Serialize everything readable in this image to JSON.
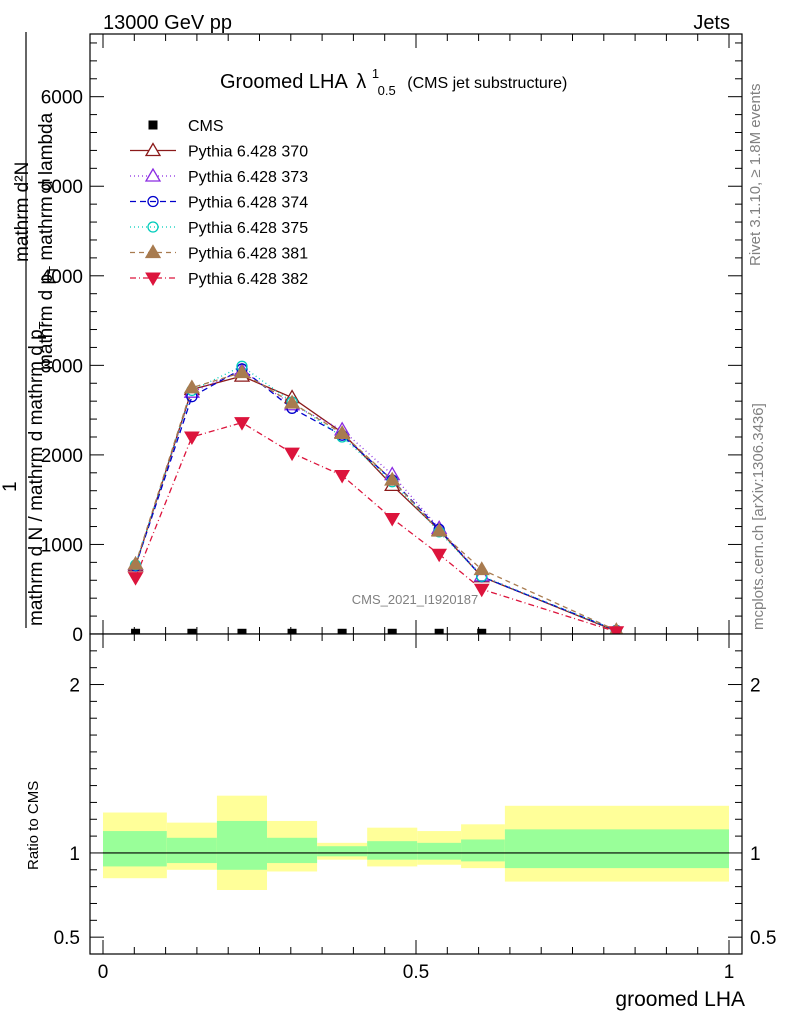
{
  "header": {
    "left": "13000 GeV pp",
    "right": "Jets",
    "side_top": "Rivet 3.1.10, ≥ 1.8M events",
    "side_bottom": "mcplots.cern.ch [arXiv:1306.3436]",
    "watermark": "CMS_2021_I1920187"
  },
  "chart_data": [
    {
      "type": "line",
      "title_main": "Groomed LHA",
      "title_symbol": "λ",
      "title_sup": "1",
      "title_sub": "0.5",
      "title_paren": "(CMS jet substructure)",
      "ylabel_num": "mathrm d²N",
      "ylabel_num_l2": "mathrm d p",
      "ylabel_num_l2_sub": "T",
      "ylabel_num_l2_tail": " mathrm d lambda",
      "ylabel_prefix": "1",
      "ylabel_den": "mathrm d N / mathrm d mathrm d p",
      "ylabel_den_sub": "T",
      "xlim": [
        0,
        1
      ],
      "ylim": [
        0,
        6700
      ],
      "yticks": [
        {
          "v": 0,
          "label": "0"
        },
        {
          "v": 1000,
          "label": "1000"
        },
        {
          "v": 2000,
          "label": "2000"
        },
        {
          "v": 3000,
          "label": "3000"
        },
        {
          "v": 4000,
          "label": "4000"
        },
        {
          "v": 5000,
          "label": "5000"
        },
        {
          "v": 6000,
          "label": "6000"
        }
      ],
      "x": [
        0.052,
        0.142,
        0.222,
        0.302,
        0.382,
        0.462,
        0.537,
        0.605,
        0.82
      ],
      "series": [
        {
          "name": "CMS",
          "marker": "square",
          "color": "#000000",
          "dash": "none",
          "values": [
            8,
            8,
            8,
            8,
            8,
            8,
            8,
            8,
            null
          ]
        },
        {
          "name": "Pythia 6.428 370",
          "marker": "triangle-open",
          "color": "#8b1a1a",
          "dash": "none",
          "values": [
            760,
            2730,
            2880,
            2640,
            2250,
            1660,
            1160,
            640,
            30
          ]
        },
        {
          "name": "Pythia 6.428 373",
          "marker": "triangle-open",
          "color": "#8a2be2",
          "dash": "1,3",
          "values": [
            775,
            2700,
            2940,
            2560,
            2280,
            1780,
            1180,
            650,
            35
          ]
        },
        {
          "name": "Pythia 6.428 374",
          "marker": "circle-open",
          "color": "#0000cc",
          "dash": "6,4",
          "values": [
            760,
            2650,
            2960,
            2520,
            2220,
            1720,
            1170,
            640,
            40
          ]
        },
        {
          "name": "Pythia 6.428 375",
          "marker": "circle-open",
          "color": "#00ccbb",
          "dash": "1,3",
          "values": [
            770,
            2720,
            2990,
            2590,
            2200,
            1700,
            1140,
            645,
            38
          ]
        },
        {
          "name": "Pythia 6.428 381",
          "marker": "triangle-filled",
          "color": "#a87b4f",
          "dash": "5,4",
          "values": [
            780,
            2750,
            2920,
            2580,
            2240,
            1720,
            1150,
            720,
            40
          ]
        },
        {
          "name": "Pythia 6.428 382",
          "marker": "triangle-down-filled",
          "color": "#dc143c",
          "dash": "6,3,1,3",
          "values": [
            630,
            2200,
            2360,
            2020,
            1770,
            1290,
            890,
            500,
            25
          ]
        }
      ]
    },
    {
      "type": "area",
      "ylabel": "Ratio to CMS",
      "xlabel": "groomed LHA",
      "xlim": [
        0,
        1
      ],
      "ylim": [
        0.4,
        2.3
      ],
      "xticks": [
        {
          "v": 0,
          "label": "0"
        },
        {
          "v": 0.5,
          "label": "0.5"
        },
        {
          "v": 1,
          "label": "1"
        }
      ],
      "yticks": [
        {
          "v": 0.5,
          "label": "0.5"
        },
        {
          "v": 1,
          "label": "1"
        },
        {
          "v": 2,
          "label": "2"
        }
      ],
      "bands": [
        {
          "x0": 0.0,
          "x1": 0.102,
          "yel_lo": 0.85,
          "yel_hi": 1.24,
          "grn_lo": 0.92,
          "grn_hi": 1.13
        },
        {
          "x0": 0.102,
          "x1": 0.182,
          "yel_lo": 0.9,
          "yel_hi": 1.18,
          "grn_lo": 0.94,
          "grn_hi": 1.09
        },
        {
          "x0": 0.182,
          "x1": 0.262,
          "yel_lo": 0.78,
          "yel_hi": 1.34,
          "grn_lo": 0.9,
          "grn_hi": 1.19
        },
        {
          "x0": 0.262,
          "x1": 0.342,
          "yel_lo": 0.89,
          "yel_hi": 1.19,
          "grn_lo": 0.94,
          "grn_hi": 1.09
        },
        {
          "x0": 0.342,
          "x1": 0.422,
          "yel_lo": 0.96,
          "yel_hi": 1.06,
          "grn_lo": 0.98,
          "grn_hi": 1.04
        },
        {
          "x0": 0.422,
          "x1": 0.502,
          "yel_lo": 0.92,
          "yel_hi": 1.15,
          "grn_lo": 0.96,
          "grn_hi": 1.07
        },
        {
          "x0": 0.502,
          "x1": 0.572,
          "yel_lo": 0.93,
          "yel_hi": 1.13,
          "grn_lo": 0.96,
          "grn_hi": 1.06
        },
        {
          "x0": 0.572,
          "x1": 0.642,
          "yel_lo": 0.91,
          "yel_hi": 1.17,
          "grn_lo": 0.95,
          "grn_hi": 1.08
        },
        {
          "x0": 0.642,
          "x1": 1.0,
          "yel_lo": 0.83,
          "yel_hi": 1.28,
          "grn_lo": 0.91,
          "grn_hi": 1.14
        }
      ]
    }
  ]
}
